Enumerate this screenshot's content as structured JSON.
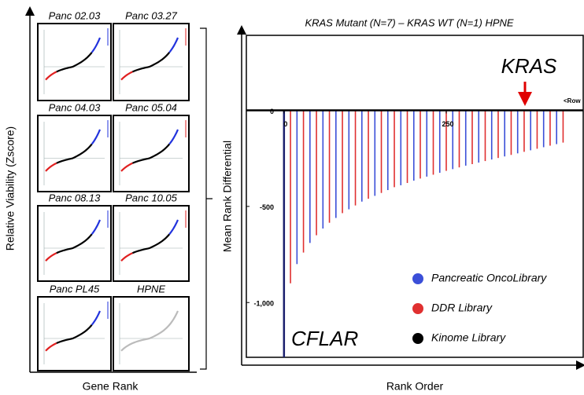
{
  "chart_data": [
    {
      "type": "panel-grid",
      "y_label": "Relative Viability (Zscore)",
      "x_label": "Gene Rank",
      "panels": [
        {
          "title": "Panc  02.03"
        },
        {
          "title": "Panc  03.27"
        },
        {
          "title": "Panc  04.03"
        },
        {
          "title": "Panc  05.04"
        },
        {
          "title": "Panc  08.13"
        },
        {
          "title": "Panc  10.05"
        },
        {
          "title": "Panc  PL45"
        },
        {
          "title": "HPNE"
        }
      ]
    },
    {
      "type": "bar",
      "title": "KRAS Mutant (N=7) – KRAS WT (N=1) HPNE",
      "y_label": "Mean Rank Differential",
      "x_label": "Rank Order",
      "xlim": [
        -58,
        461
      ],
      "xticks": [
        0,
        250
      ],
      "ylim": [
        -1285,
        390
      ],
      "yticks": [
        0,
        -500,
        {
          "value": -1000,
          "label": "-1,000"
        }
      ],
      "annotations": [
        "KRAS",
        "CFLAR",
        "<Row"
      ],
      "series": [
        {
          "name": "Pancreatic OncoLibrary",
          "color": "#3b4fd8",
          "x": [
            0,
            20,
            40,
            60,
            80,
            100,
            120,
            140,
            160,
            180,
            200,
            220,
            240,
            260,
            280,
            300,
            320,
            340,
            360,
            380,
            400,
            420
          ],
          "values": [
            -1150,
            -800,
            -690,
            -615,
            -560,
            -515,
            -475,
            -445,
            -415,
            -390,
            -366,
            -345,
            -325,
            -306,
            -288,
            -272,
            -256,
            -240,
            -224,
            -208,
            -192,
            -176
          ]
        },
        {
          "name": "DDR Library",
          "color": "#e03030",
          "x": [
            10,
            30,
            50,
            70,
            90,
            110,
            130,
            150,
            170,
            190,
            210,
            230,
            250,
            270,
            290,
            310,
            330,
            350,
            370,
            390,
            410,
            430
          ],
          "values": [
            -900,
            -740,
            -650,
            -585,
            -535,
            -495,
            -460,
            -430,
            -400,
            -378,
            -355,
            -335,
            -315,
            -297,
            -280,
            -264,
            -248,
            -232,
            -216,
            -200,
            -184,
            -168
          ]
        },
        {
          "name": "Kinome Library",
          "color": "#000000",
          "x": [],
          "values": []
        }
      ]
    }
  ]
}
